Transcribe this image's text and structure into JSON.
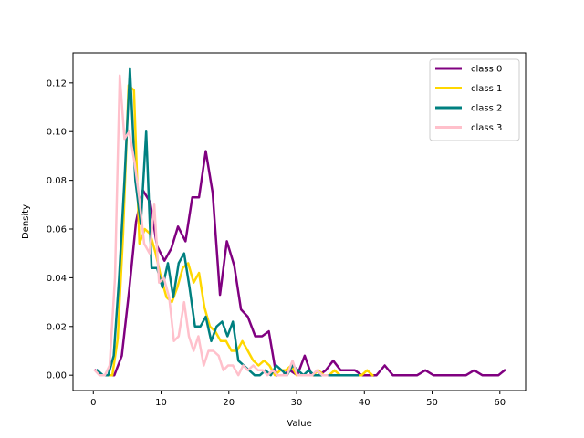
{
  "chart_data": {
    "type": "line",
    "title": "",
    "xlabel": "Value",
    "ylabel": "Density",
    "xlim": [
      -3.0,
      63.8
    ],
    "ylim": [
      -0.0063,
      0.1323
    ],
    "xticks": [
      0,
      10,
      20,
      30,
      40,
      50,
      60
    ],
    "yticks": [
      0.0,
      0.02,
      0.04,
      0.06,
      0.08,
      0.1,
      0.12
    ],
    "ytick_labels": [
      "0.00",
      "0.02",
      "0.04",
      "0.06",
      "0.08",
      "0.10",
      "0.12"
    ],
    "grid": false,
    "legend": "top-right",
    "series": [
      {
        "name": "class 0",
        "color": "#800080",
        "points": [
          [
            0.3,
            0.002
          ],
          [
            1.1,
            0.0
          ],
          [
            2.1,
            0.0
          ],
          [
            3.1,
            0.0
          ],
          [
            4.2,
            0.008
          ],
          [
            5.3,
            0.035
          ],
          [
            6.3,
            0.063
          ],
          [
            7.3,
            0.076
          ],
          [
            8.4,
            0.071
          ],
          [
            9.4,
            0.053
          ],
          [
            10.5,
            0.047
          ],
          [
            11.5,
            0.052
          ],
          [
            12.5,
            0.061
          ],
          [
            13.6,
            0.055
          ],
          [
            14.6,
            0.073
          ],
          [
            15.6,
            0.073
          ],
          [
            16.6,
            0.092
          ],
          [
            17.6,
            0.075
          ],
          [
            18.7,
            0.033
          ],
          [
            19.7,
            0.055
          ],
          [
            20.8,
            0.045
          ],
          [
            21.8,
            0.027
          ],
          [
            22.8,
            0.024
          ],
          [
            23.9,
            0.016
          ],
          [
            24.9,
            0.016
          ],
          [
            25.9,
            0.018
          ],
          [
            27.0,
            0.0
          ],
          [
            28.0,
            0.0
          ],
          [
            29.0,
            0.002
          ],
          [
            30.1,
            0.0
          ],
          [
            31.2,
            0.008
          ],
          [
            32.2,
            0.0
          ],
          [
            33.3,
            0.0
          ],
          [
            34.3,
            0.002
          ],
          [
            35.4,
            0.006
          ],
          [
            36.5,
            0.002
          ],
          [
            37.5,
            0.002
          ],
          [
            38.6,
            0.002
          ],
          [
            39.6,
            0.0
          ],
          [
            40.7,
            0.0
          ],
          [
            41.8,
            0.0
          ],
          [
            43.0,
            0.004
          ],
          [
            44.2,
            0.0
          ],
          [
            45.4,
            0.0
          ],
          [
            46.6,
            0.0
          ],
          [
            47.8,
            0.0
          ],
          [
            49.0,
            0.002
          ],
          [
            50.2,
            0.0
          ],
          [
            51.4,
            0.0
          ],
          [
            52.6,
            0.0
          ],
          [
            53.8,
            0.0
          ],
          [
            55.0,
            0.0
          ],
          [
            56.2,
            0.002
          ],
          [
            57.4,
            0.0
          ],
          [
            58.6,
            0.0
          ],
          [
            59.8,
            0.0
          ],
          [
            60.7,
            0.002
          ]
        ]
      },
      {
        "name": "class 1",
        "color": "#ffd700",
        "points": [
          [
            1.2,
            0.0
          ],
          [
            2.0,
            0.0
          ],
          [
            2.8,
            0.0
          ],
          [
            3.6,
            0.015
          ],
          [
            4.4,
            0.058
          ],
          [
            5.2,
            0.119
          ],
          [
            6.0,
            0.117
          ],
          [
            6.8,
            0.054
          ],
          [
            7.6,
            0.06
          ],
          [
            8.4,
            0.058
          ],
          [
            9.2,
            0.05
          ],
          [
            10.0,
            0.04
          ],
          [
            10.8,
            0.032
          ],
          [
            11.6,
            0.03
          ],
          [
            12.4,
            0.036
          ],
          [
            13.2,
            0.044
          ],
          [
            14.0,
            0.046
          ],
          [
            14.8,
            0.038
          ],
          [
            15.6,
            0.042
          ],
          [
            16.4,
            0.028
          ],
          [
            17.2,
            0.02
          ],
          [
            18.0,
            0.018
          ],
          [
            18.8,
            0.014
          ],
          [
            19.6,
            0.014
          ],
          [
            20.4,
            0.01
          ],
          [
            21.2,
            0.01
          ],
          [
            22.0,
            0.014
          ],
          [
            22.8,
            0.01
          ],
          [
            23.6,
            0.006
          ],
          [
            24.4,
            0.004
          ],
          [
            25.2,
            0.006
          ],
          [
            26.0,
            0.004
          ],
          [
            26.8,
            0.0
          ],
          [
            27.6,
            0.002
          ],
          [
            28.4,
            0.002
          ],
          [
            29.2,
            0.004
          ],
          [
            30.0,
            0.0
          ],
          [
            30.8,
            0.0
          ],
          [
            31.6,
            0.0
          ],
          [
            32.4,
            0.0
          ],
          [
            33.2,
            0.002
          ],
          [
            34.0,
            0.0
          ],
          [
            34.8,
            0.0
          ],
          [
            35.6,
            0.002
          ],
          [
            36.4,
            0.0
          ],
          [
            37.2,
            0.0
          ],
          [
            38.0,
            0.0
          ],
          [
            38.8,
            0.0
          ],
          [
            39.6,
            0.0
          ],
          [
            40.4,
            0.002
          ],
          [
            41.2,
            0.0
          ]
        ]
      },
      {
        "name": "class 2",
        "color": "#008080",
        "points": [
          [
            0.6,
            0.002
          ],
          [
            1.4,
            0.0
          ],
          [
            2.2,
            0.0
          ],
          [
            3.0,
            0.008
          ],
          [
            3.8,
            0.04
          ],
          [
            4.6,
            0.08
          ],
          [
            5.4,
            0.126
          ],
          [
            6.2,
            0.08
          ],
          [
            7.0,
            0.062
          ],
          [
            7.8,
            0.1
          ],
          [
            8.6,
            0.044
          ],
          [
            9.4,
            0.044
          ],
          [
            10.2,
            0.036
          ],
          [
            11.0,
            0.046
          ],
          [
            11.8,
            0.032
          ],
          [
            12.6,
            0.046
          ],
          [
            13.4,
            0.05
          ],
          [
            14.2,
            0.036
          ],
          [
            15.0,
            0.02
          ],
          [
            15.8,
            0.02
          ],
          [
            16.6,
            0.024
          ],
          [
            17.4,
            0.014
          ],
          [
            18.2,
            0.02
          ],
          [
            19.0,
            0.022
          ],
          [
            19.8,
            0.016
          ],
          [
            20.6,
            0.022
          ],
          [
            21.4,
            0.006
          ],
          [
            22.2,
            0.004
          ],
          [
            23.0,
            0.002
          ],
          [
            23.8,
            0.0
          ],
          [
            24.6,
            0.0
          ],
          [
            25.4,
            0.002
          ],
          [
            26.2,
            0.0
          ],
          [
            27.0,
            0.004
          ],
          [
            27.8,
            0.002
          ],
          [
            28.6,
            0.0
          ],
          [
            29.4,
            0.004
          ],
          [
            30.2,
            0.002
          ],
          [
            31.0,
            0.0
          ],
          [
            31.8,
            0.002
          ],
          [
            32.6,
            0.0
          ],
          [
            33.4,
            0.0
          ],
          [
            34.2,
            0.0
          ],
          [
            35.0,
            0.0
          ],
          [
            35.8,
            0.0
          ],
          [
            36.6,
            0.0
          ],
          [
            37.4,
            0.0
          ],
          [
            38.2,
            0.0
          ],
          [
            39.0,
            0.0
          ]
        ]
      },
      {
        "name": "class 3",
        "color": "#ffc0cb",
        "points": [
          [
            0.2,
            0.002
          ],
          [
            0.9,
            0.0
          ],
          [
            1.7,
            0.0
          ],
          [
            2.4,
            0.004
          ],
          [
            3.2,
            0.04
          ],
          [
            3.9,
            0.123
          ],
          [
            4.6,
            0.097
          ],
          [
            5.3,
            0.1
          ],
          [
            6.1,
            0.087
          ],
          [
            6.8,
            0.072
          ],
          [
            7.5,
            0.054
          ],
          [
            8.3,
            0.05
          ],
          [
            9.0,
            0.07
          ],
          [
            9.7,
            0.038
          ],
          [
            10.4,
            0.04
          ],
          [
            11.2,
            0.032
          ],
          [
            11.9,
            0.014
          ],
          [
            12.6,
            0.016
          ],
          [
            13.4,
            0.03
          ],
          [
            14.1,
            0.016
          ],
          [
            14.8,
            0.01
          ],
          [
            15.5,
            0.016
          ],
          [
            16.3,
            0.004
          ],
          [
            17.0,
            0.01
          ],
          [
            17.7,
            0.01
          ],
          [
            18.5,
            0.008
          ],
          [
            19.2,
            0.002
          ],
          [
            19.9,
            0.004
          ],
          [
            20.6,
            0.004
          ],
          [
            21.4,
            0.0
          ],
          [
            22.1,
            0.004
          ],
          [
            22.8,
            0.002
          ],
          [
            23.6,
            0.004
          ],
          [
            24.3,
            0.002
          ],
          [
            25.0,
            0.002
          ],
          [
            25.7,
            0.0
          ],
          [
            26.5,
            0.002
          ],
          [
            27.2,
            0.0
          ],
          [
            27.9,
            0.0
          ],
          [
            28.6,
            0.0
          ],
          [
            29.4,
            0.006
          ],
          [
            30.1,
            0.0
          ],
          [
            30.8,
            0.0
          ],
          [
            31.6,
            0.0
          ],
          [
            32.3,
            0.0
          ],
          [
            33.0,
            0.002
          ],
          [
            33.8,
            0.0
          ],
          [
            34.5,
            0.0
          ]
        ]
      }
    ]
  }
}
